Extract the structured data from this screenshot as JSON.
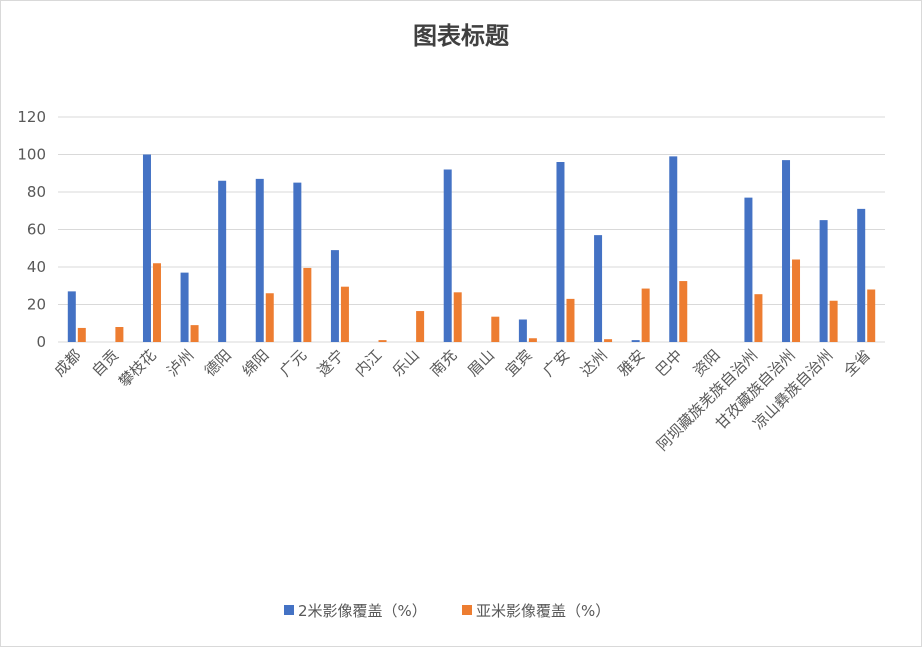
{
  "chart_data": {
    "type": "bar",
    "title": "图表标题",
    "categories": [
      "成都",
      "自贡",
      "攀枝花",
      "泸州",
      "德阳",
      "绵阳",
      "广元",
      "遂宁",
      "内江",
      "乐山",
      "南充",
      "眉山",
      "宜宾",
      "广安",
      "达州",
      "雅安",
      "巴中",
      "资阳",
      "阿坝藏族羌族自治州",
      "甘孜藏族自治州",
      "凉山彝族自治州",
      "全省"
    ],
    "series": [
      {
        "name": "2米影像覆盖（%）",
        "color": "#4472C4",
        "values": [
          27,
          0,
          100,
          37,
          86,
          87,
          85,
          49,
          0,
          0,
          92,
          0,
          12,
          96,
          57,
          1,
          99,
          0,
          77,
          97,
          65,
          71
        ]
      },
      {
        "name": "亚米影像覆盖（%）",
        "color": "#ED7D31",
        "values": [
          7.5,
          8,
          42,
          9,
          0,
          26,
          39.5,
          29.5,
          1,
          16.5,
          26.5,
          13.5,
          2,
          23,
          1.5,
          28.5,
          32.5,
          0,
          25.5,
          44,
          22,
          28
        ]
      }
    ],
    "ylim": [
      0,
      120
    ],
    "yticks": [
      0,
      20,
      40,
      60,
      80,
      100,
      120
    ],
    "grid": true,
    "legend_position": "bottom"
  }
}
